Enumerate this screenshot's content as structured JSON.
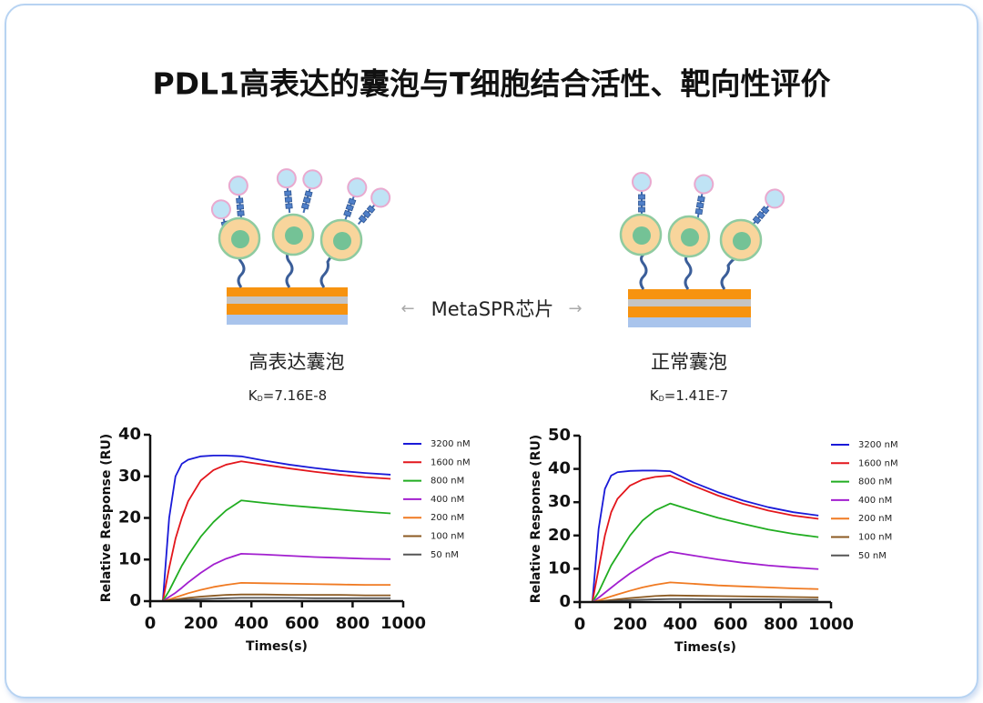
{
  "title": "PDL1高表达的囊泡与T细胞结合活性、靶向性评价",
  "chip_label": "MetaSPR芯片",
  "panels": [
    {
      "label": "高表达囊泡",
      "kd": {
        "symbol": "K",
        "subscript": "D",
        "value": "=7.16E-8"
      }
    },
    {
      "label": "正常囊泡",
      "kd": {
        "symbol": "K",
        "subscript": "D",
        "value": "=1.41E-7"
      }
    }
  ],
  "chart_data": [
    {
      "type": "line",
      "x_label": "Times(s)",
      "y_label": "Relative Response (RU)",
      "x": [
        50,
        75,
        100,
        125,
        150,
        200,
        250,
        300,
        360,
        450,
        550,
        650,
        750,
        850,
        950
      ],
      "xlim": [
        0,
        1000
      ],
      "xticks": [
        0,
        200,
        400,
        600,
        800,
        1000
      ],
      "ylim": [
        0,
        40
      ],
      "yticks": [
        0,
        10,
        20,
        30,
        40
      ],
      "legend": "right",
      "series": [
        {
          "name": "3200 nM",
          "color": "#1a1ad8",
          "values": [
            0,
            20,
            30,
            33,
            34,
            34.8,
            35,
            35,
            34.8,
            33.8,
            32.8,
            32,
            31.3,
            30.8,
            30.4
          ]
        },
        {
          "name": "1600 nM",
          "color": "#e3161c",
          "values": [
            0,
            8,
            15,
            20,
            24,
            29,
            31.5,
            32.8,
            33.6,
            32.8,
            31.9,
            31.1,
            30.4,
            29.8,
            29.4
          ]
        },
        {
          "name": "800 nM",
          "color": "#21ad21",
          "values": [
            0,
            2.5,
            5.5,
            8.5,
            11,
            15.5,
            19,
            21.8,
            24.2,
            23.6,
            23,
            22.5,
            22,
            21.5,
            21.1
          ]
        },
        {
          "name": "400 nM",
          "color": "#a21fcf",
          "values": [
            0,
            1,
            2,
            3.2,
            4.5,
            6.8,
            8.8,
            10.2,
            11.4,
            11.2,
            10.9,
            10.6,
            10.4,
            10.2,
            10.1
          ]
        },
        {
          "name": "200 nM",
          "color": "#f07a22",
          "values": [
            0,
            0.4,
            0.9,
            1.4,
            1.9,
            2.7,
            3.4,
            3.9,
            4.4,
            4.3,
            4.2,
            4.1,
            4,
            3.9,
            3.9
          ]
        },
        {
          "name": "100 nM",
          "color": "#8b5a22",
          "values": [
            0,
            0.2,
            0.4,
            0.6,
            0.8,
            1.1,
            1.3,
            1.5,
            1.6,
            1.6,
            1.5,
            1.5,
            1.5,
            1.4,
            1.4
          ]
        },
        {
          "name": "50 nM",
          "color": "#555555",
          "values": [
            0,
            0.1,
            0.2,
            0.3,
            0.4,
            0.5,
            0.6,
            0.7,
            0.8,
            0.8,
            0.8,
            0.7,
            0.7,
            0.7,
            0.7
          ]
        }
      ]
    },
    {
      "type": "line",
      "x_label": "Times(s)",
      "y_label": "Relative Response (RU)",
      "x": [
        50,
        75,
        100,
        125,
        150,
        200,
        250,
        300,
        360,
        450,
        550,
        650,
        750,
        850,
        950
      ],
      "xlim": [
        0,
        1000
      ],
      "xticks": [
        0,
        200,
        400,
        600,
        800,
        1000
      ],
      "ylim": [
        0,
        50
      ],
      "yticks": [
        0,
        10,
        20,
        30,
        40,
        50
      ],
      "legend": "right",
      "series": [
        {
          "name": "3200 nM",
          "color": "#1a1ad8",
          "values": [
            0,
            22,
            34,
            38,
            39,
            39.4,
            39.5,
            39.5,
            39.3,
            36,
            33,
            30.5,
            28.5,
            27,
            26
          ]
        },
        {
          "name": "1600 nM",
          "color": "#e3161c",
          "values": [
            0,
            10,
            20,
            27,
            31,
            35,
            36.8,
            37.6,
            38,
            35,
            32,
            29.5,
            27.5,
            26,
            25
          ]
        },
        {
          "name": "800 nM",
          "color": "#21ad21",
          "values": [
            0,
            3,
            7,
            11,
            14,
            20,
            24.5,
            27.5,
            29.6,
            27.5,
            25.3,
            23.5,
            21.8,
            20.5,
            19.5
          ]
        },
        {
          "name": "400 nM",
          "color": "#a21fcf",
          "values": [
            0,
            1.3,
            2.8,
            4.3,
            5.8,
            8.6,
            11,
            13.3,
            15.1,
            14,
            12.8,
            11.8,
            11,
            10.4,
            9.9
          ]
        },
        {
          "name": "200 nM",
          "color": "#f07a22",
          "values": [
            0,
            0.5,
            1.1,
            1.7,
            2.3,
            3.4,
            4.4,
            5.2,
            5.9,
            5.5,
            5,
            4.7,
            4.4,
            4.1,
            3.9
          ]
        },
        {
          "name": "100 nM",
          "color": "#8b5a22",
          "values": [
            0,
            0.2,
            0.4,
            0.6,
            0.8,
            1.2,
            1.5,
            1.8,
            2,
            1.9,
            1.8,
            1.7,
            1.6,
            1.5,
            1.4
          ]
        },
        {
          "name": "50 nM",
          "color": "#555555",
          "values": [
            0,
            0.1,
            0.2,
            0.3,
            0.4,
            0.6,
            0.7,
            0.8,
            0.9,
            0.9,
            0.8,
            0.8,
            0.8,
            0.7,
            0.7
          ]
        }
      ]
    }
  ]
}
